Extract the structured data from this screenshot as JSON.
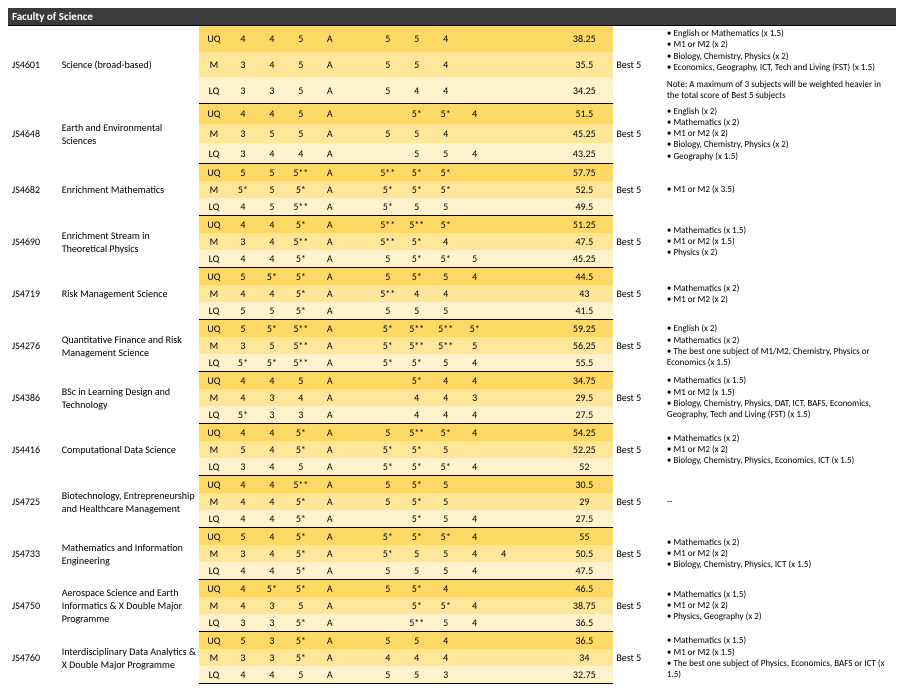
{
  "faculty_header": "Faculty of Science",
  "selection_label": "Best 5",
  "row_labels": [
    "UQ",
    "M",
    "LQ"
  ],
  "columns_count": 12,
  "programmes": [
    {
      "code": "JS4601",
      "name": "Science (broad-based)",
      "rows": [
        [
          "4",
          "4",
          "5",
          "A",
          "",
          "5",
          "5",
          "4",
          "",
          "",
          "",
          "38.25"
        ],
        [
          "3",
          "4",
          "5",
          "A",
          "",
          "5",
          "5",
          "4",
          "",
          "",
          "",
          "35.5"
        ],
        [
          "3",
          "3",
          "5",
          "A",
          "",
          "5",
          "4",
          "4",
          "",
          "",
          "",
          "34.25"
        ]
      ],
      "weights": [
        "English or Mathematics (x 1.5)",
        "M1 or M2 (x 2)",
        "Biology, Chemistry, Physics (x 2)",
        "Economics, Geography, ICT, Tech and Living (FST) (x 1.5)"
      ],
      "note": "Note: A maximum of 3 subjects will be weighted heavier in the total score of Best 5 subjects"
    },
    {
      "code": "JS4648",
      "name": "Earth and Environmental Sciences",
      "rows": [
        [
          "4",
          "4",
          "5",
          "A",
          "",
          "",
          "5*",
          "5*",
          "4",
          "",
          "",
          "51.5"
        ],
        [
          "3",
          "5",
          "5",
          "A",
          "",
          "5",
          "5",
          "4",
          "",
          "",
          "",
          "45.25"
        ],
        [
          "3",
          "4",
          "4",
          "A",
          "",
          "",
          "5",
          "5",
          "4",
          "",
          "",
          "43.25"
        ]
      ],
      "weights": [
        "English (x 2)",
        "Mathematics (x 2)",
        "M1 or M2 (x 2)",
        "Biology, Chemistry, Physics (x 2)",
        "Geography (x 1.5)"
      ]
    },
    {
      "code": "JS4682",
      "name": "Enrichment Mathematics",
      "rows": [
        [
          "5",
          "5",
          "5**",
          "A",
          "",
          "5**",
          "5*",
          "5*",
          "",
          "",
          "",
          "57.75"
        ],
        [
          "5*",
          "5",
          "5*",
          "A",
          "",
          "5*",
          "5*",
          "5*",
          "",
          "",
          "",
          "52.5"
        ],
        [
          "4",
          "5",
          "5**",
          "A",
          "",
          "5*",
          "5",
          "5",
          "",
          "",
          "",
          "49.5"
        ]
      ],
      "weights": [
        "M1 or M2 (x 3.5)"
      ]
    },
    {
      "code": "JS4690",
      "name": "Enrichment Stream in Theoretical Physics",
      "rows": [
        [
          "4",
          "4",
          "5*",
          "A",
          "",
          "5**",
          "5**",
          "5*",
          "",
          "",
          "",
          "51.25"
        ],
        [
          "3",
          "4",
          "5**",
          "A",
          "",
          "5**",
          "5*",
          "4",
          "",
          "",
          "",
          "47.5"
        ],
        [
          "4",
          "4",
          "5*",
          "A",
          "",
          "5",
          "5*",
          "5*",
          "5",
          "",
          "",
          "45.25"
        ]
      ],
      "weights": [
        "Mathematics (x 1.5)",
        "M1 or M2 (x 1.5)",
        "Physics (x 2)"
      ]
    },
    {
      "code": "JS4719",
      "name": "Risk Management Science",
      "rows": [
        [
          "5",
          "5*",
          "5*",
          "A",
          "",
          "5",
          "5*",
          "5",
          "4",
          "",
          "",
          "44.5"
        ],
        [
          "4",
          "4",
          "5*",
          "A",
          "",
          "5**",
          "4",
          "4",
          "",
          "",
          "",
          "43"
        ],
        [
          "5",
          "5",
          "5*",
          "A",
          "",
          "5",
          "5",
          "5",
          "",
          "",
          "",
          "41.5"
        ]
      ],
      "weights": [
        "Mathematics (x 2)",
        "M1 or M2 (x 2)"
      ]
    },
    {
      "code": "JS4276",
      "name": "Quantitative Finance and Risk Management Science",
      "rows": [
        [
          "5",
          "5*",
          "5**",
          "A",
          "",
          "5*",
          "5**",
          "5**",
          "5*",
          "",
          "",
          "59.25"
        ],
        [
          "3",
          "5",
          "5**",
          "A",
          "",
          "5*",
          "5**",
          "5**",
          "5",
          "",
          "",
          "56.25"
        ],
        [
          "5*",
          "5*",
          "5**",
          "A",
          "",
          "5*",
          "5*",
          "5",
          "4",
          "",
          "",
          "55.5"
        ]
      ],
      "weights": [
        "English (x 2)",
        "Mathematics (x 2)",
        "The best one subject of M1/M2, Chemistry, Physics or Economics (x 1.5)"
      ]
    },
    {
      "code": "JS4386",
      "name": "BSc in Learning Design and Technology",
      "rows": [
        [
          "4",
          "4",
          "5",
          "A",
          "",
          "",
          "5*",
          "4",
          "4",
          "",
          "",
          "34.75"
        ],
        [
          "4",
          "3",
          "4",
          "A",
          "",
          "",
          "4",
          "4",
          "3",
          "",
          "",
          "29.5"
        ],
        [
          "5*",
          "3",
          "3",
          "A",
          "",
          "",
          "4",
          "4",
          "4",
          "",
          "",
          "27.5"
        ]
      ],
      "weights": [
        "Mathematics (x 1.5)",
        "M1 or M2 (x 1.5)",
        "Biology, Chemistry, Physics, DAT, ICT, BAFS, Economics, Geography, Tech and Living (FST) (x 1.5)"
      ]
    },
    {
      "code": "JS4416",
      "name": "Computational Data Science",
      "rows": [
        [
          "4",
          "4",
          "5*",
          "A",
          "",
          "5",
          "5**",
          "5*",
          "4",
          "",
          "",
          "54.25"
        ],
        [
          "5",
          "4",
          "5*",
          "A",
          "",
          "5*",
          "5*",
          "5",
          "",
          "",
          "",
          "52.25"
        ],
        [
          "3",
          "4",
          "5",
          "A",
          "",
          "5*",
          "5*",
          "5*",
          "4",
          "",
          "",
          "52"
        ]
      ],
      "weights": [
        "Mathematics (x 2)",
        "M1 or M2 (x 2)",
        "Biology, Chemistry, Physics, Economics, ICT (x 1.5)"
      ]
    },
    {
      "code": "JS4725",
      "name": "Biotechnology, Entrepreneurship and Healthcare Management",
      "rows": [
        [
          "4",
          "4",
          "5**",
          "A",
          "",
          "5",
          "5*",
          "5",
          "",
          "",
          "",
          "30.5"
        ],
        [
          "4",
          "4",
          "5*",
          "A",
          "",
          "5",
          "5*",
          "5",
          "",
          "",
          "",
          "29"
        ],
        [
          "4",
          "4",
          "5*",
          "A",
          "",
          "",
          "5*",
          "5",
          "4",
          "",
          "",
          "27.5"
        ]
      ],
      "weights": [
        "--"
      ],
      "plain": true
    },
    {
      "code": "JS4733",
      "name": "Mathematics and Information Engineering",
      "rows": [
        [
          "5",
          "4",
          "5*",
          "A",
          "",
          "5*",
          "5*",
          "5*",
          "4",
          "",
          "",
          "55"
        ],
        [
          "3",
          "4",
          "5*",
          "A",
          "",
          "5*",
          "5",
          "5",
          "4",
          "4",
          "",
          "50.5"
        ],
        [
          "4",
          "4",
          "5*",
          "A",
          "",
          "5",
          "5",
          "5",
          "4",
          "",
          "",
          "47.5"
        ]
      ],
      "weights": [
        "Mathematics (x 2)",
        "M1 or M2 (x 2)",
        "Biology, Chemistry, Physics, ICT (x 1.5)"
      ]
    },
    {
      "code": "JS4750",
      "name": "Aerospace Science and Earth Informatics & X Double Major Programme",
      "rows": [
        [
          "4",
          "5*",
          "5*",
          "A",
          "",
          "5",
          "5*",
          "4",
          "",
          "",
          "",
          "46.5"
        ],
        [
          "4",
          "3",
          "5",
          "A",
          "",
          "",
          "5*",
          "5*",
          "4",
          "",
          "",
          "38.75"
        ],
        [
          "3",
          "3",
          "5*",
          "A",
          "",
          "",
          "5**",
          "5",
          "4",
          "",
          "",
          "36.5"
        ]
      ],
      "weights": [
        "Mathematics (x 1.5)",
        "M1 or M2 (x 2)",
        "Physics, Geography (x 2)"
      ]
    },
    {
      "code": "JS4760",
      "name": "Interdisciplinary Data Analytics & X Double Major Programme",
      "rows": [
        [
          "5",
          "3",
          "5*",
          "A",
          "",
          "5",
          "5",
          "4",
          "",
          "",
          "",
          "36.5"
        ],
        [
          "3",
          "3",
          "5*",
          "A",
          "",
          "4",
          "4",
          "4",
          "",
          "",
          "",
          "34"
        ],
        [
          "4",
          "4",
          "5",
          "A",
          "",
          "5",
          "5",
          "3",
          "",
          "",
          "",
          "32.75"
        ]
      ],
      "weights": [
        "Mathematics (x 1.5)",
        "M1 or M2 (x 1.5)",
        "The best one subject of Physics, Economics, BAFS or ICT (x 1.5)"
      ]
    }
  ]
}
